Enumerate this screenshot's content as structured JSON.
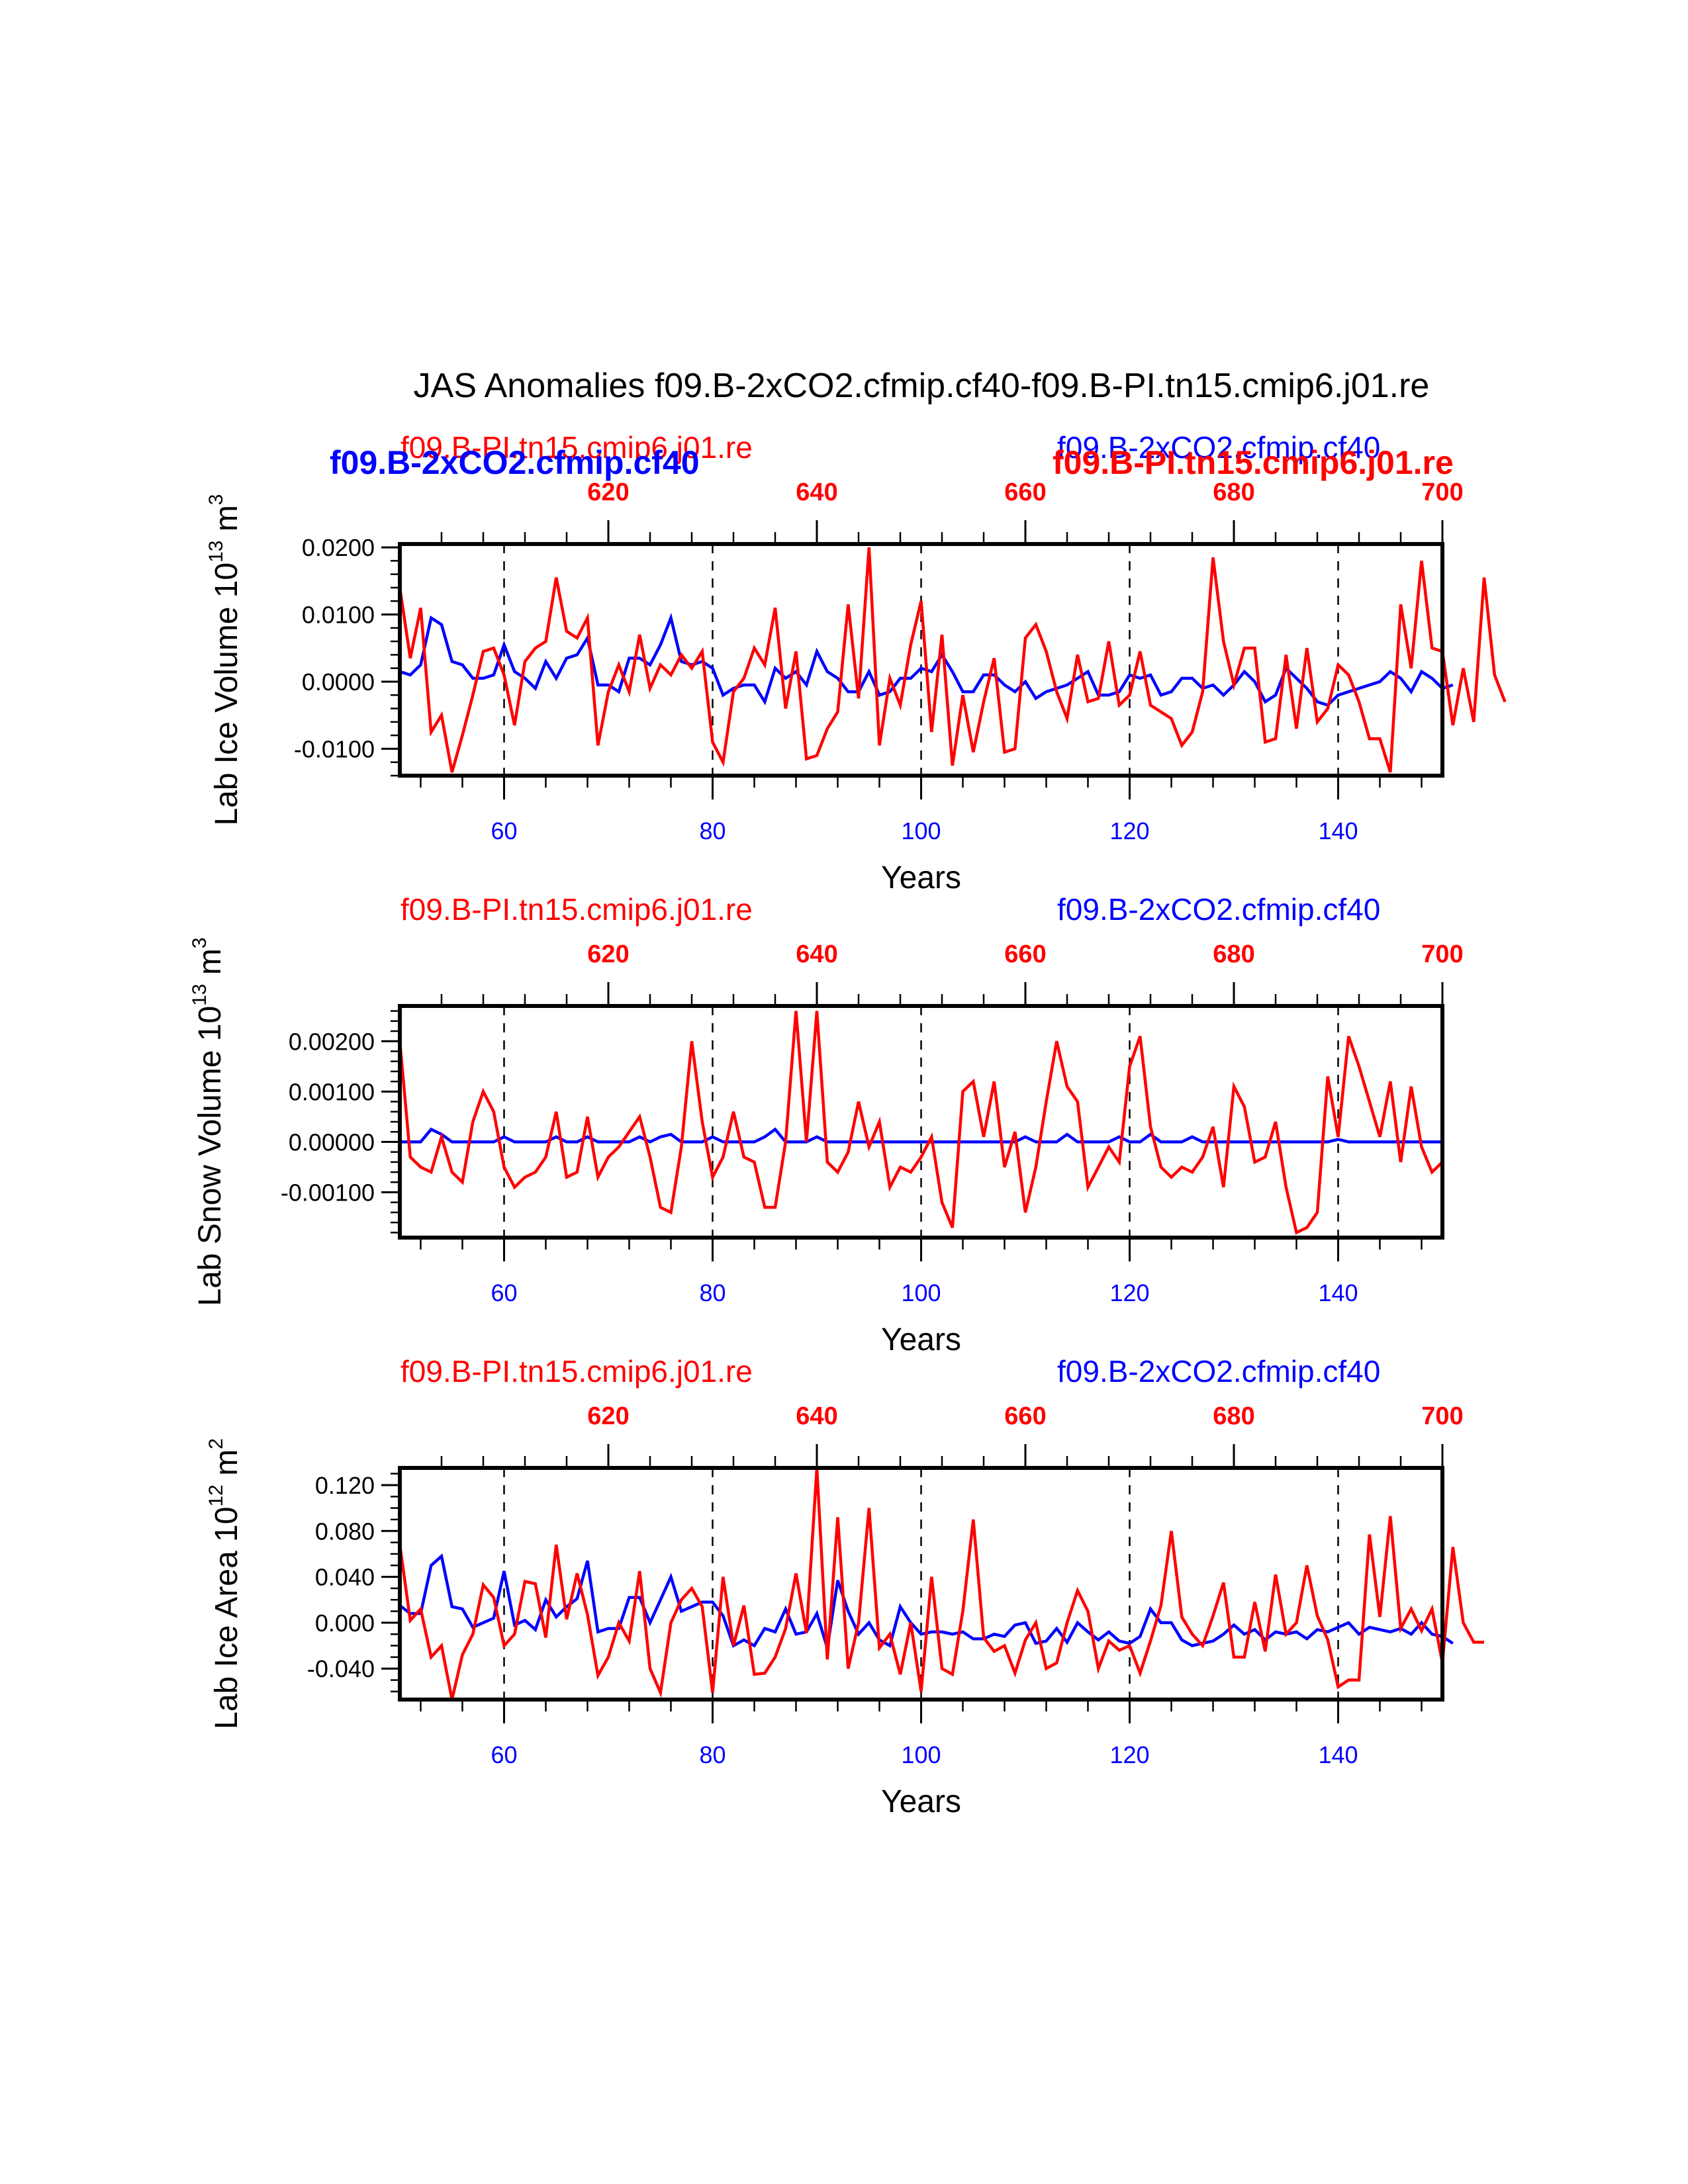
{
  "title": "JAS Anomalies f09.B-2xCO2.cfmip.cf40-f09.B-PI.tn15.cmip6.j01.re",
  "colors": {
    "red": "#ff0000",
    "blue": "#0000ff",
    "axis": "#000000"
  },
  "chart_data": [
    {
      "type": "line",
      "title": "",
      "ylabel": "Lab Ice Volume 10^13 m^3",
      "ylabel_main": "Lab Ice Volume 10",
      "ylabel_exp": "13",
      "ylabel_unit": " m",
      "ylabel_unit_exp": "3",
      "xlabel": "Years",
      "xlim": [
        50,
        150
      ],
      "x_ticks": [
        60,
        80,
        100,
        120,
        140
      ],
      "x_tick_labels": [
        "60",
        "80",
        "100",
        "120",
        "140"
      ],
      "top_xlim": [
        600,
        700
      ],
      "top_ticks": [
        620,
        640,
        660,
        680,
        700
      ],
      "top_tick_labels": [
        "620",
        "640",
        "660",
        "680",
        "700"
      ],
      "ylim": [
        -0.014,
        0.0205
      ],
      "y_ticks": [
        0.02,
        0.01,
        0.0,
        -0.01
      ],
      "y_tick_labels": [
        "0.0200",
        "0.0100",
        "0.0000",
        "-0.0100"
      ],
      "y_minor_step": 0.002,
      "vlines": [
        60,
        80,
        100,
        120,
        140
      ],
      "legend": [
        {
          "label": "f09.B-PI.tn15.cmip6.j01.re",
          "color": "#ff0000",
          "position": "top-left"
        },
        {
          "label": "f09.B-2xCO2.cfmip.cf40",
          "color": "#0000ff",
          "position": "top-right"
        }
      ],
      "legend_overlap": [
        {
          "label": "f09.B-2xCO2.cfmip.cf40",
          "color": "#0000ff",
          "position": "top-left",
          "bold": true
        },
        {
          "label": "f09.B-PI.tn15.cmip6.j01.re",
          "color": "#ff0000",
          "position": "top-right",
          "bold": true
        }
      ],
      "x": "50..150",
      "series": [
        {
          "name": "f09.B-PI.tn15.cmip6.j01.re",
          "color": "#ff0000",
          "values": [
            0.014,
            0.0035,
            0.011,
            -0.0075,
            -0.005,
            -0.0135,
            -0.008,
            -0.002,
            0.0045,
            0.005,
            0.001,
            -0.0065,
            0.003,
            0.005,
            0.006,
            0.0155,
            0.0075,
            0.0065,
            0.0095,
            -0.0095,
            -0.0015,
            0.0025,
            -0.0015,
            0.007,
            -0.001,
            0.0025,
            0.001,
            0.004,
            0.002,
            0.0045,
            -0.009,
            -0.012,
            -0.0015,
            0.0005,
            0.005,
            0.0025,
            0.011,
            -0.004,
            0.0045,
            -0.0115,
            -0.011,
            -0.007,
            -0.0045,
            0.0115,
            -0.0025,
            0.02,
            -0.0095,
            0.0005,
            -0.0035,
            0.0055,
            0.012,
            -0.0075,
            0.007,
            -0.0125,
            -0.002,
            -0.0105,
            -0.003,
            0.0035,
            -0.0105,
            -0.01,
            0.0065,
            0.0085,
            0.0045,
            -0.0015,
            -0.0055,
            0.004,
            -0.003,
            -0.0025,
            0.006,
            -0.0035,
            -0.002,
            0.0045,
            -0.0035,
            -0.0045,
            -0.0055,
            -0.0095,
            -0.0075,
            -0.0015,
            0.0185,
            0.006,
            -0.0005,
            0.005,
            0.005,
            -0.009,
            -0.0085,
            0.004,
            -0.007,
            0.005,
            -0.006,
            -0.004,
            0.0025,
            0.001,
            -0.003,
            -0.0085,
            -0.0085,
            -0.0135,
            0.0115,
            0.002,
            0.018,
            0.005,
            0.0045,
            -0.0065,
            0.002,
            -0.006,
            0.0155,
            0.001,
            -0.003
          ]
        },
        {
          "name": "f09.B-2xCO2.cfmip.cf40",
          "color": "#0000ff",
          "values": [
            0.0015,
            0.001,
            0.0025,
            0.0095,
            0.0085,
            0.003,
            0.0025,
            0.0005,
            0.0005,
            0.001,
            0.0055,
            0.0015,
            0.0005,
            -0.001,
            0.003,
            0.0005,
            0.0035,
            0.004,
            0.0065,
            -0.0005,
            -0.0005,
            -0.0015,
            0.0035,
            0.0035,
            0.0025,
            0.0055,
            0.0095,
            0.003,
            0.0025,
            0.003,
            0.002,
            -0.002,
            -0.001,
            -0.0005,
            -0.0005,
            -0.003,
            0.002,
            0.0005,
            0.0015,
            -0.0005,
            0.0045,
            0.0015,
            0.0005,
            -0.0015,
            -0.0015,
            0.0015,
            -0.002,
            -0.0015,
            0.0005,
            0.0005,
            0.002,
            0.0015,
            0.004,
            0.0015,
            -0.0015,
            -0.0015,
            0.001,
            0.001,
            -0.0005,
            -0.0015,
            0.0,
            -0.0025,
            -0.0015,
            -0.001,
            -0.0005,
            0.0005,
            0.0015,
            -0.002,
            -0.002,
            -0.0015,
            0.001,
            0.0005,
            0.001,
            -0.002,
            -0.0015,
            0.0005,
            0.0005,
            -0.001,
            -0.0005,
            -0.002,
            -0.0005,
            0.0015,
            0.0,
            -0.003,
            -0.002,
            0.002,
            0.0005,
            -0.001,
            -0.003,
            -0.0035,
            -0.002,
            -0.0015,
            -0.001,
            -0.0005,
            0.0,
            0.0015,
            0.0005,
            -0.0015,
            0.0015,
            0.0005,
            -0.001,
            -0.0005
          ]
        }
      ]
    },
    {
      "type": "line",
      "title": "",
      "ylabel": "Lab Snow Volume 10^13 m^3",
      "ylabel_main": "Lab Snow Volume 10",
      "ylabel_exp": "13",
      "ylabel_unit": " m",
      "ylabel_unit_exp": "3",
      "xlabel": "Years",
      "xlim": [
        50,
        150
      ],
      "x_ticks": [
        60,
        80,
        100,
        120,
        140
      ],
      "x_tick_labels": [
        "60",
        "80",
        "100",
        "120",
        "140"
      ],
      "top_xlim": [
        600,
        700
      ],
      "top_ticks": [
        620,
        640,
        660,
        680,
        700
      ],
      "top_tick_labels": [
        "620",
        "640",
        "660",
        "680",
        "700"
      ],
      "ylim": [
        -0.0019,
        0.0027
      ],
      "y_ticks": [
        0.002,
        0.001,
        0.0,
        -0.001
      ],
      "y_tick_labels": [
        "0.00200",
        "0.00100",
        "0.00000",
        "-0.00100"
      ],
      "y_minor_step": 0.0002,
      "vlines": [
        60,
        80,
        100,
        120,
        140
      ],
      "legend": [
        {
          "label": "f09.B-PI.tn15.cmip6.j01.re",
          "color": "#ff0000",
          "position": "top-left"
        },
        {
          "label": "f09.B-2xCO2.cfmip.cf40",
          "color": "#0000ff",
          "position": "top-right"
        }
      ],
      "x": "50..150",
      "series": [
        {
          "name": "f09.B-PI.tn15.cmip6.j01.re",
          "color": "#ff0000",
          "values": [
            0.002,
            -0.0003,
            -0.0005,
            -0.0006,
            0.0001,
            -0.0006,
            -0.0008,
            0.0004,
            0.001,
            0.0006,
            -0.0005,
            -0.0009,
            -0.0007,
            -0.0006,
            -0.0003,
            0.0006,
            -0.0007,
            -0.0006,
            0.0005,
            -0.0007,
            -0.0003,
            -0.0001,
            0.0002,
            0.0005,
            -0.0003,
            -0.0013,
            -0.0014,
            -0.0001,
            0.002,
            0.0004,
            -0.0007,
            -0.0003,
            0.0006,
            -0.0003,
            -0.0004,
            -0.0013,
            -0.0013,
            0.0,
            0.0026,
            0.0,
            0.0026,
            -0.0004,
            -0.0006,
            -0.0002,
            0.0008,
            -0.0001,
            0.0004,
            -0.0009,
            -0.0005,
            -0.0006,
            -0.0003,
            0.0001,
            -0.0012,
            -0.0017,
            0.001,
            0.0012,
            0.0001,
            0.0012,
            -0.0005,
            0.0002,
            -0.0014,
            -0.0005,
            0.0008,
            0.002,
            0.0011,
            0.0008,
            -0.0009,
            -0.0005,
            -0.0001,
            -0.0004,
            0.0015,
            0.0021,
            0.0003,
            -0.0005,
            -0.0007,
            -0.0005,
            -0.0006,
            -0.0003,
            0.0003,
            -0.0009,
            0.0011,
            0.0007,
            -0.0004,
            -0.0003,
            0.0004,
            -0.0009,
            -0.0018,
            -0.0017,
            -0.0014,
            0.0013,
            0.0001,
            0.0021,
            0.0015,
            0.0008,
            0.0001,
            0.0012,
            -0.0004,
            0.0011,
            -0.0001,
            -0.0006,
            -0.0004
          ]
        },
        {
          "name": "f09.B-2xCO2.cfmip.cf40",
          "color": "#0000ff",
          "values": [
            0.0,
            0.0,
            0.0,
            0.00025,
            0.00015,
            0.0,
            0.0,
            0.0,
            0.0,
            0.0,
            0.0001,
            0.0,
            0.0,
            0.0,
            0.0,
            0.0001,
            0.0,
            0.0,
            0.0001,
            0.0,
            0.0,
            0.0,
            0.0,
            0.0001,
            0.0,
            0.0001,
            0.00015,
            0.0,
            0.0,
            0.0,
            0.0001,
            0.0,
            0.0,
            0.0,
            0.0,
            0.0001,
            0.00025,
            0.0,
            0.0,
            0.0,
            0.0001,
            0.0,
            0.0,
            0.0,
            0.0,
            0.0,
            0.0,
            0.0,
            0.0,
            0.0,
            0.0,
            0.0,
            0.0,
            0.0,
            0.0,
            0.0,
            0.0,
            0.0,
            0.0,
            0.0,
            0.0001,
            0.0,
            0.0,
            0.0,
            0.00015,
            0.0,
            0.0,
            0.0,
            0.0,
            0.0001,
            0.0,
            0.0,
            0.00015,
            0.0,
            0.0,
            0.0,
            0.0001,
            0.0,
            0.0,
            0.0,
            0.0,
            0.0,
            0.0,
            0.0,
            0.0,
            0.0,
            0.0,
            0.0,
            0.0,
            0.0,
            5e-05,
            0.0,
            0.0,
            0.0,
            0.0,
            0.0,
            0.0,
            0.0,
            0.0,
            0.0,
            0.0
          ]
        }
      ]
    },
    {
      "type": "line",
      "title": "",
      "ylabel": "Lab Ice Area 10^12 m^2",
      "ylabel_main": "Lab Ice Area 10",
      "ylabel_exp": "12",
      "ylabel_unit": " m",
      "ylabel_unit_exp": "2",
      "xlabel": "Years",
      "xlim": [
        50,
        150
      ],
      "x_ticks": [
        60,
        80,
        100,
        120,
        140
      ],
      "x_tick_labels": [
        "60",
        "80",
        "100",
        "120",
        "140"
      ],
      "top_xlim": [
        600,
        700
      ],
      "top_ticks": [
        620,
        640,
        660,
        680,
        700
      ],
      "top_tick_labels": [
        "620",
        "640",
        "660",
        "680",
        "700"
      ],
      "ylim": [
        -0.067,
        0.135
      ],
      "y_ticks": [
        0.12,
        0.08,
        0.04,
        0.0,
        -0.04
      ],
      "y_tick_labels": [
        "0.120",
        "0.080",
        "0.040",
        "0.000",
        "-0.040"
      ],
      "y_minor_step": 0.01,
      "vlines": [
        60,
        80,
        100,
        120,
        140
      ],
      "legend": [
        {
          "label": "f09.B-PI.tn15.cmip6.j01.re",
          "color": "#ff0000",
          "position": "top-left"
        },
        {
          "label": "f09.B-2xCO2.cfmip.cf40",
          "color": "#0000ff",
          "position": "top-right"
        }
      ],
      "x": "50..150",
      "series": [
        {
          "name": "f09.B-PI.tn15.cmip6.j01.re",
          "color": "#ff0000",
          "values": [
            0.068,
            0.002,
            0.012,
            -0.03,
            -0.02,
            -0.067,
            -0.028,
            -0.01,
            0.033,
            0.022,
            -0.02,
            -0.01,
            0.036,
            0.034,
            -0.013,
            0.068,
            0.003,
            0.043,
            0.007,
            -0.046,
            -0.03,
            0.0,
            -0.016,
            0.045,
            -0.04,
            -0.061,
            0.0,
            0.02,
            0.03,
            0.014,
            -0.061,
            0.04,
            -0.02,
            0.015,
            -0.045,
            -0.044,
            -0.03,
            -0.005,
            0.043,
            -0.009,
            0.135,
            -0.032,
            0.092,
            -0.04,
            0.0,
            0.1,
            -0.022,
            -0.01,
            -0.045,
            0.0,
            -0.06,
            0.04,
            -0.04,
            -0.045,
            0.01,
            0.09,
            -0.013,
            -0.025,
            -0.02,
            -0.044,
            -0.015,
            0.0,
            -0.04,
            -0.035,
            0.0,
            0.028,
            0.01,
            -0.04,
            -0.016,
            -0.024,
            -0.02,
            -0.044,
            -0.016,
            0.015,
            0.08,
            0.005,
            -0.01,
            -0.02,
            0.006,
            0.035,
            -0.03,
            -0.03,
            0.018,
            -0.025,
            0.042,
            -0.01,
            0.0,
            0.05,
            0.006,
            -0.015,
            -0.056,
            -0.05,
            -0.05,
            0.077,
            0.005,
            0.093,
            -0.005,
            0.012,
            -0.007,
            0.012,
            -0.035,
            0.066,
            0.0,
            -0.017,
            -0.017
          ]
        },
        {
          "name": "f09.B-2xCO2.cfmip.cf40",
          "color": "#0000ff",
          "values": [
            0.015,
            0.008,
            0.008,
            0.05,
            0.058,
            0.014,
            0.012,
            -0.004,
            0.0,
            0.004,
            0.045,
            -0.002,
            0.002,
            -0.006,
            0.02,
            0.005,
            0.014,
            0.021,
            0.054,
            -0.008,
            -0.005,
            -0.005,
            0.022,
            0.022,
            0.0,
            0.02,
            0.04,
            0.01,
            0.014,
            0.018,
            0.018,
            0.006,
            -0.02,
            -0.015,
            -0.02,
            -0.005,
            -0.008,
            0.012,
            -0.01,
            -0.008,
            0.008,
            -0.022,
            0.037,
            0.01,
            -0.01,
            0.0,
            -0.015,
            -0.02,
            0.014,
            0.0,
            -0.01,
            -0.008,
            -0.008,
            -0.01,
            -0.008,
            -0.014,
            -0.014,
            -0.01,
            -0.012,
            -0.002,
            0.0,
            -0.018,
            -0.016,
            -0.005,
            -0.017,
            0.0,
            -0.008,
            -0.015,
            -0.008,
            -0.016,
            -0.018,
            -0.012,
            0.012,
            0.0,
            0.0,
            -0.015,
            -0.02,
            -0.018,
            -0.016,
            -0.01,
            -0.002,
            -0.01,
            -0.006,
            -0.015,
            -0.008,
            -0.01,
            -0.008,
            -0.014,
            -0.006,
            -0.008,
            -0.004,
            0.0,
            -0.01,
            -0.004,
            -0.006,
            -0.008,
            -0.005,
            -0.01,
            0.0,
            -0.01,
            -0.012,
            -0.018
          ]
        }
      ]
    }
  ]
}
